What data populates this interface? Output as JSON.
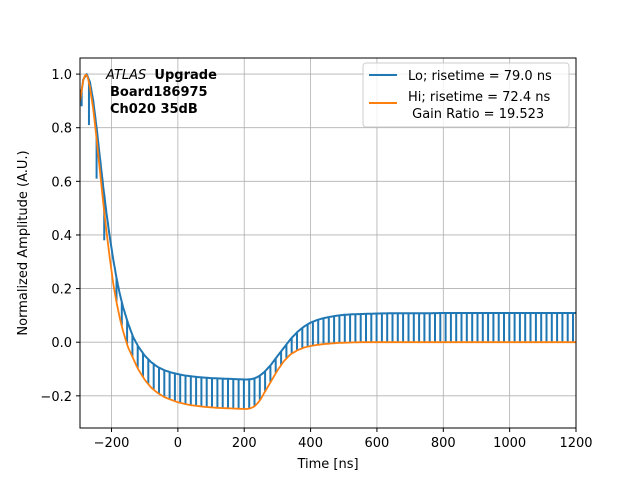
{
  "chart_data": {
    "type": "line",
    "xlabel": "Time [ns]",
    "ylabel": "Normalized Amplitude (A.U.)",
    "xlim": [
      -295,
      1200
    ],
    "ylim": [
      -0.32,
      1.06
    ],
    "xticks": [
      -200,
      0,
      200,
      400,
      600,
      800,
      1000,
      1200
    ],
    "yticks": [
      -0.2,
      0.0,
      0.2,
      0.4,
      0.6,
      0.8,
      1.0
    ],
    "xtick_labels": [
      "−200",
      "0",
      "200",
      "400",
      "600",
      "800",
      "1000",
      "1200"
    ],
    "ytick_labels": [
      "−0.2",
      "0.0",
      "0.2",
      "0.4",
      "0.6",
      "0.8",
      "1.0"
    ],
    "grid": true,
    "legend_position": "top-right",
    "annotation": {
      "experiment": "ATLAS",
      "tag": "Upgrade",
      "line2": "Board186975",
      "line3": "Ch020 35dB"
    },
    "series": [
      {
        "name": "Lo; risetime = 79.0 ns",
        "color": "#1f77b4",
        "style": "sawtooth",
        "x": [
          -295,
          -285,
          -275,
          -265,
          -255,
          -245,
          -235,
          -225,
          -215,
          -205,
          -195,
          -185,
          -175,
          -165,
          -150,
          -135,
          -120,
          -100,
          -80,
          -60,
          -40,
          -20,
          0,
          20,
          40,
          60,
          80,
          100,
          120,
          140,
          160,
          180,
          200,
          210,
          220,
          230,
          240,
          250,
          260,
          280,
          300,
          320,
          340,
          360,
          380,
          400,
          420,
          440,
          460,
          480,
          500,
          525,
          550,
          575,
          600,
          650,
          700,
          750,
          800,
          850,
          900,
          950,
          1000,
          1050,
          1100,
          1150,
          1200
        ],
        "y": [
          0.9,
          0.98,
          1.0,
          0.97,
          0.9,
          0.8,
          0.69,
          0.58,
          0.48,
          0.39,
          0.31,
          0.24,
          0.18,
          0.13,
          0.07,
          0.02,
          -0.015,
          -0.05,
          -0.075,
          -0.093,
          -0.105,
          -0.113,
          -0.119,
          -0.124,
          -0.127,
          -0.13,
          -0.132,
          -0.134,
          -0.135,
          -0.136,
          -0.137,
          -0.138,
          -0.139,
          -0.139,
          -0.138,
          -0.135,
          -0.13,
          -0.122,
          -0.112,
          -0.085,
          -0.052,
          -0.02,
          0.012,
          0.038,
          0.058,
          0.073,
          0.083,
          0.09,
          0.095,
          0.099,
          0.102,
          0.104,
          0.105,
          0.106,
          0.107,
          0.108,
          0.108,
          0.108,
          0.109,
          0.109,
          0.109,
          0.109,
          0.109,
          0.109,
          0.109,
          0.109,
          0.109
        ],
        "glitches": [
          {
            "x": -290,
            "low": 0.88
          },
          {
            "x": -268,
            "low": 0.81
          },
          {
            "x": -245,
            "low": 0.61
          },
          {
            "x": -222,
            "low": 0.38
          }
        ]
      },
      {
        "name": "Hi; risetime = 72.4 ns",
        "color": "#ff7f0e",
        "style": "line",
        "x": [
          -295,
          -285,
          -278,
          -272,
          -265,
          -255,
          -245,
          -235,
          -225,
          -215,
          -205,
          -195,
          -185,
          -175,
          -165,
          -150,
          -135,
          -120,
          -100,
          -80,
          -60,
          -40,
          -20,
          0,
          20,
          40,
          60,
          80,
          100,
          120,
          140,
          160,
          180,
          200,
          210,
          220,
          230,
          240,
          250,
          260,
          280,
          300,
          320,
          340,
          360,
          380,
          400,
          420,
          440,
          460,
          480,
          500,
          525,
          550,
          575,
          600,
          650,
          700,
          800,
          900,
          1000,
          1100,
          1200
        ],
        "y": [
          0.9,
          0.98,
          1.0,
          0.99,
          0.95,
          0.87,
          0.76,
          0.64,
          0.52,
          0.41,
          0.31,
          0.22,
          0.15,
          0.09,
          0.04,
          -0.02,
          -0.06,
          -0.1,
          -0.14,
          -0.17,
          -0.19,
          -0.205,
          -0.215,
          -0.224,
          -0.23,
          -0.235,
          -0.238,
          -0.241,
          -0.243,
          -0.245,
          -0.246,
          -0.247,
          -0.248,
          -0.249,
          -0.249,
          -0.246,
          -0.24,
          -0.228,
          -0.212,
          -0.19,
          -0.148,
          -0.105,
          -0.07,
          -0.045,
          -0.03,
          -0.02,
          -0.014,
          -0.01,
          -0.007,
          -0.005,
          -0.003,
          -0.002,
          -0.001,
          0.0,
          0.0,
          0.0,
          0.0,
          0.0,
          0.0,
          0.0,
          0.0,
          0.0,
          0.0
        ]
      }
    ],
    "gain_ratio_label": " Gain Ratio = 19.523"
  }
}
